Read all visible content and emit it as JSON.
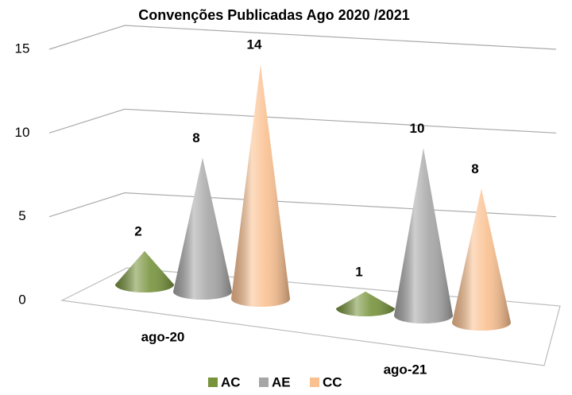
{
  "chart_data": {
    "type": "bar",
    "title": "Convenções Publicadas Ago 2020 /2021",
    "categories": [
      "ago-20",
      "ago-21"
    ],
    "series": [
      {
        "name": "AC",
        "color": "#77933c",
        "values": [
          2,
          1
        ]
      },
      {
        "name": "AE",
        "color": "#a6a6a6",
        "values": [
          8,
          10
        ]
      },
      {
        "name": "CC",
        "color": "#fac090",
        "values": [
          14,
          8
        ]
      }
    ],
    "ylim": [
      0,
      15
    ],
    "yticks": [
      0,
      5,
      10,
      15
    ],
    "grid": true,
    "legend": "bottom"
  }
}
